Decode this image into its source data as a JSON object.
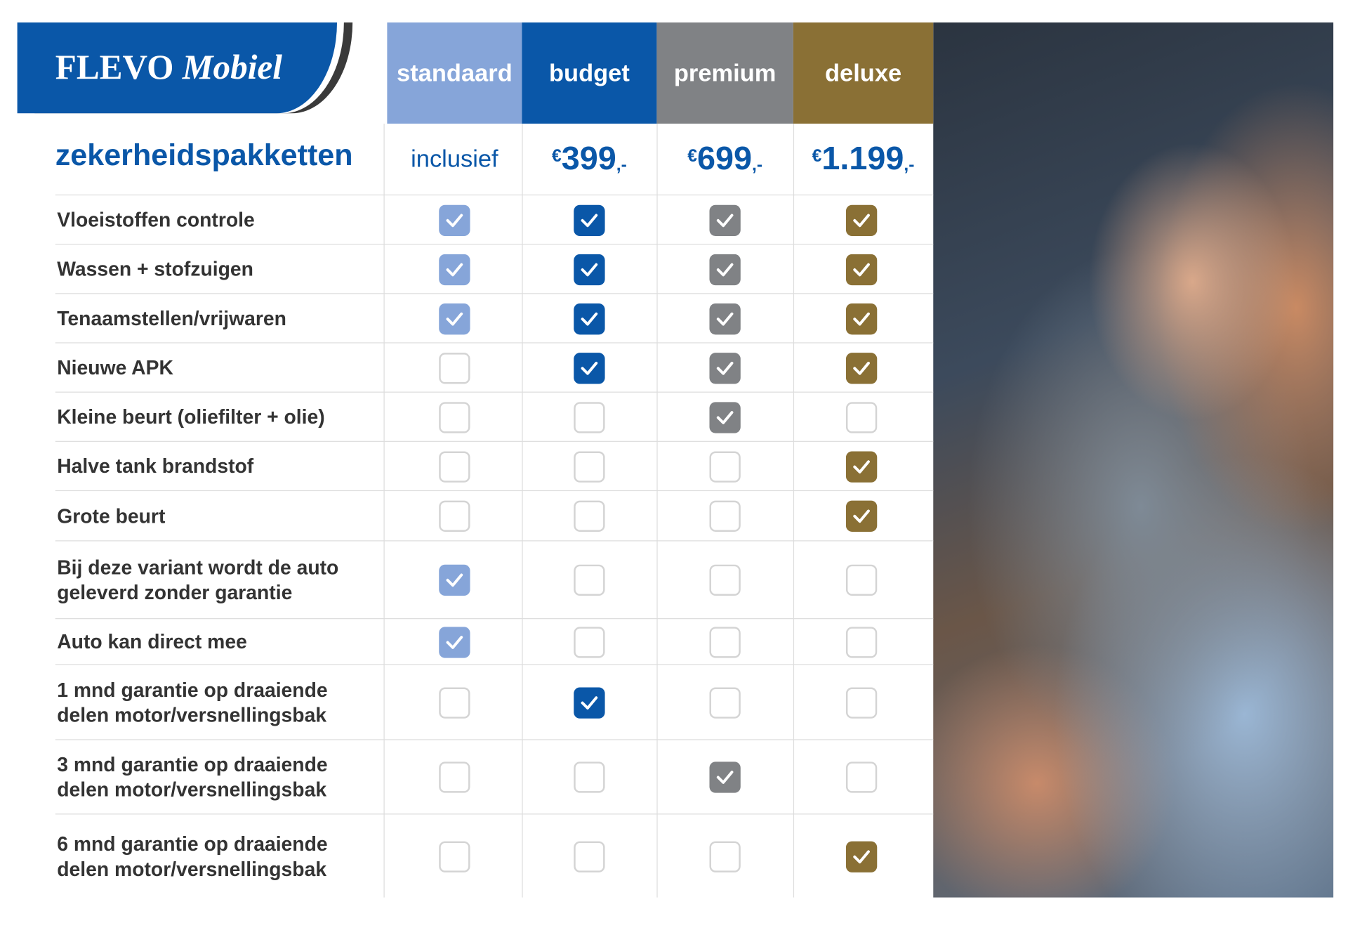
{
  "brand": {
    "name_part1": "FLEVO",
    "name_part2": "Mobiel",
    "color": "#0a57a8"
  },
  "title": "zekerheidspakketten",
  "packages": [
    {
      "name": "standaard",
      "price": "inclusief",
      "color": "#86a5d9"
    },
    {
      "name": "budget",
      "price_symbol": "€",
      "price_value": "399",
      "price_suffix": ",-",
      "color": "#0a57a8"
    },
    {
      "name": "premium",
      "price_symbol": "€",
      "price_value": "699",
      "price_suffix": ",-",
      "color": "#808285"
    },
    {
      "name": "deluxe",
      "price_symbol": "€",
      "price_value": "1.199",
      "price_suffix": ",-",
      "color": "#8a7035"
    }
  ],
  "features": [
    {
      "label": "Vloeistoffen controle",
      "checks": [
        true,
        true,
        true,
        true
      ]
    },
    {
      "label": "Wassen + stofzuigen",
      "checks": [
        true,
        true,
        true,
        true
      ]
    },
    {
      "label": "Tenaamstellen/vrijwaren",
      "checks": [
        true,
        true,
        true,
        true
      ]
    },
    {
      "label": "Nieuwe APK",
      "checks": [
        false,
        true,
        true,
        true
      ]
    },
    {
      "label": "Kleine beurt (oliefilter + olie)",
      "checks": [
        false,
        false,
        true,
        false
      ]
    },
    {
      "label": "Halve tank brandstof",
      "checks": [
        false,
        false,
        false,
        true
      ]
    },
    {
      "label": "Grote beurt",
      "checks": [
        false,
        false,
        false,
        true
      ]
    },
    {
      "label": "Bij deze variant wordt de auto geleverd zonder garantie",
      "checks": [
        true,
        false,
        false,
        false
      ]
    },
    {
      "label": "Auto kan direct mee",
      "checks": [
        true,
        false,
        false,
        false
      ]
    },
    {
      "label": "1 mnd garantie op draaiende delen motor/versnellingsbak",
      "checks": [
        false,
        true,
        false,
        false
      ]
    },
    {
      "label": "3 mnd garantie op draaiende delen motor/versnellingsbak",
      "checks": [
        false,
        false,
        true,
        false
      ]
    },
    {
      "label": "6 mnd garantie op draaiende delen motor/versnellingsbak",
      "checks": [
        false,
        false,
        false,
        true
      ]
    }
  ],
  "photo": {
    "icon": "couple-in-car-photo"
  }
}
